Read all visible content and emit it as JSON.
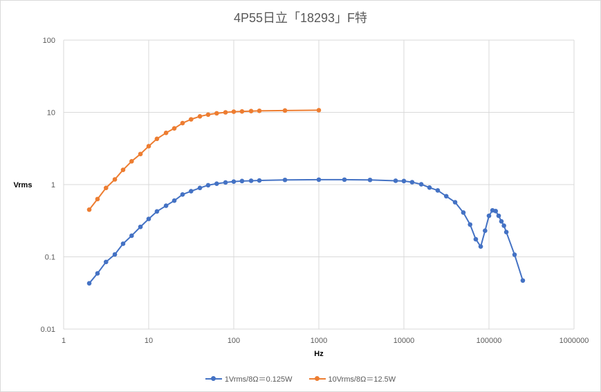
{
  "chart_data": {
    "type": "line",
    "title": "4P55日立「18293」F特",
    "xlabel": "Hz",
    "ylabel": "Vrms",
    "xscale": "log",
    "yscale": "log",
    "xlim": [
      1,
      1000000
    ],
    "ylim": [
      0.01,
      100
    ],
    "x_ticks": [
      "1",
      "10",
      "100",
      "1000",
      "10000",
      "100000",
      "1000000"
    ],
    "y_ticks": [
      "0.01",
      "0.1",
      "1",
      "10",
      "100"
    ],
    "grid": true,
    "legend_position": "bottom",
    "series": [
      {
        "name": "1Vrms/8Ω＝0.125W",
        "color": "#4472c4",
        "x": [
          2,
          2.5,
          3.15,
          4,
          5,
          6.3,
          8,
          10,
          12.5,
          16,
          20,
          25,
          31.5,
          40,
          50,
          63,
          80,
          100,
          125,
          160,
          200,
          400,
          1000,
          2000,
          4000,
          8000,
          10000,
          12500,
          16000,
          20000,
          25000,
          31500,
          40000,
          50000,
          60000,
          70000,
          80000,
          90000,
          100000,
          110000,
          120000,
          130000,
          140000,
          150000,
          160000,
          200000,
          250000
        ],
        "y": [
          0.043,
          0.059,
          0.085,
          0.108,
          0.152,
          0.196,
          0.26,
          0.335,
          0.425,
          0.51,
          0.6,
          0.73,
          0.81,
          0.9,
          0.98,
          1.03,
          1.07,
          1.1,
          1.12,
          1.13,
          1.14,
          1.16,
          1.17,
          1.17,
          1.16,
          1.13,
          1.12,
          1.08,
          1.01,
          0.91,
          0.83,
          0.69,
          0.57,
          0.41,
          0.28,
          0.175,
          0.139,
          0.23,
          0.37,
          0.44,
          0.43,
          0.37,
          0.31,
          0.27,
          0.22,
          0.107,
          0.047
        ]
      },
      {
        "name": "10Vrms/8Ω＝12.5W",
        "color": "#ed7d31",
        "x": [
          2,
          2.5,
          3.15,
          4,
          5,
          6.3,
          8,
          10,
          12.5,
          16,
          20,
          25,
          31.5,
          40,
          50,
          63,
          80,
          100,
          125,
          160,
          200,
          400,
          1000
        ],
        "y": [
          0.45,
          0.63,
          0.9,
          1.18,
          1.6,
          2.1,
          2.65,
          3.4,
          4.3,
          5.2,
          6.0,
          7.1,
          8.0,
          8.8,
          9.3,
          9.7,
          10.0,
          10.2,
          10.3,
          10.4,
          10.5,
          10.6,
          10.7
        ]
      }
    ]
  }
}
